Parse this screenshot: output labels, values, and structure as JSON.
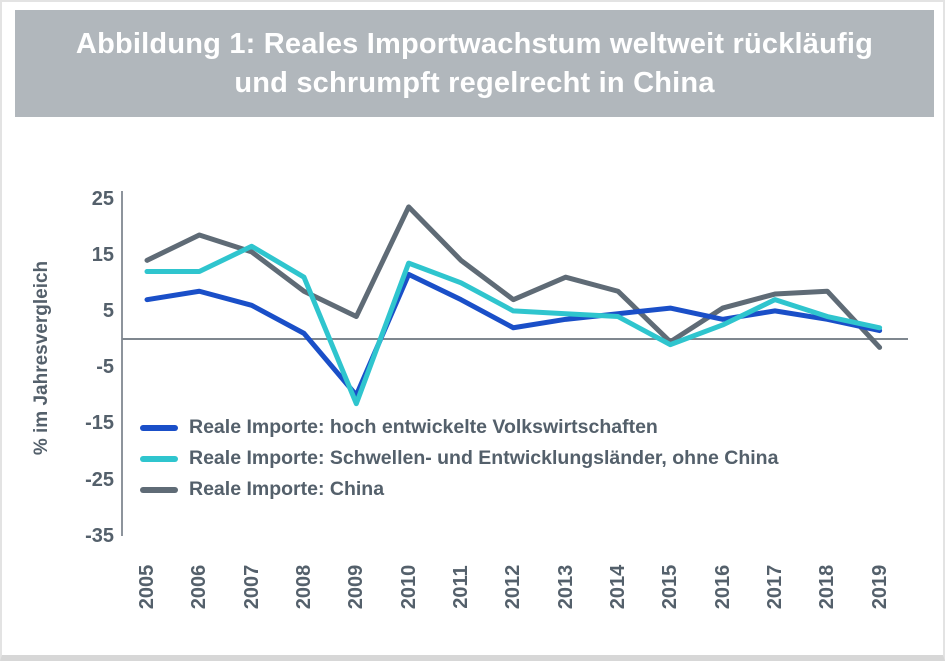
{
  "header": {
    "title_line1": "Abbildung 1: Reales Importwachstum weltweit rückläufig",
    "title_line2": "und schrumpft regelrecht in China"
  },
  "chart_data": {
    "type": "line",
    "title": "Abbildung 1: Reales Importwachstum weltweit rückläufig und schrumpft regelrecht in China",
    "xlabel": "",
    "ylabel": "% im Jahresvergleich",
    "x": [
      "2005",
      "2006",
      "2007",
      "2008",
      "2009",
      "2010",
      "2011",
      "2012",
      "2013",
      "2014",
      "2015",
      "2016",
      "2017",
      "2018",
      "2019"
    ],
    "series": [
      {
        "name": "Reale Importe: hoch entwickelte Volkswirtschaften",
        "color": "#1a4fc8",
        "values": [
          7,
          8.5,
          6,
          1,
          -10,
          11.5,
          7,
          2,
          3.5,
          4.5,
          5.5,
          3.5,
          5,
          3.5,
          1.5
        ]
      },
      {
        "name": "Reale Importe: Schwellen- und Entwicklungsländer, ohne China",
        "color": "#2fc5ce",
        "values": [
          12,
          12,
          16.5,
          11,
          -11.5,
          13.5,
          10,
          5,
          4.5,
          4,
          -1,
          2.5,
          7,
          4,
          2
        ]
      },
      {
        "name": "Reale Importe: China",
        "color": "#5f6b76",
        "values": [
          14,
          18.5,
          15.5,
          8.5,
          4,
          23.5,
          14,
          7,
          11,
          8.5,
          -0.5,
          5.5,
          8,
          8.5,
          -1.5
        ]
      }
    ],
    "yticks": [
      25,
      15,
      5,
      -5,
      -15,
      -25,
      -35
    ],
    "ylim": [
      -35,
      25
    ],
    "grid": false,
    "zero_line": true,
    "legend_position": "inside-left-middle"
  },
  "colors": {
    "banner_bg": "#b1b7bc",
    "title_text": "#ffffff",
    "axis_text": "#54606b",
    "axis_line": "#8d949c",
    "zero_line": "#7f878f",
    "card_border": "#e3e3e3"
  }
}
